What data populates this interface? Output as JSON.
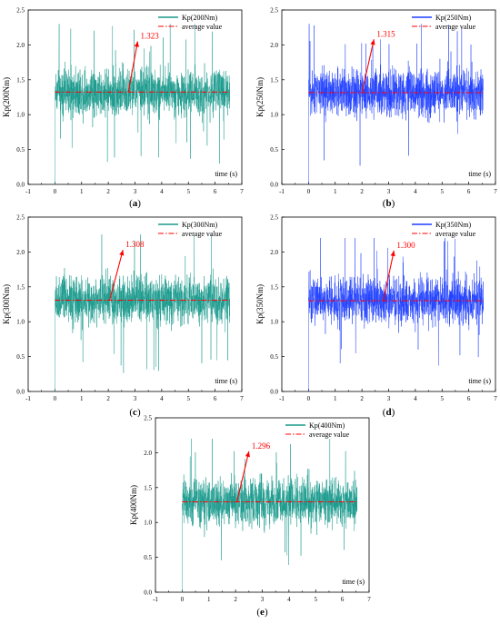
{
  "figure": {
    "panels": [
      {
        "caption_letter": "a",
        "legend_series": "Kp(200Nm)",
        "legend_average": "average value",
        "ylabel": "Kp(200Nm)",
        "xlabel": "time (s)",
        "annotation": "1.323"
      },
      {
        "caption_letter": "b",
        "legend_series": "Kp(250Nm)",
        "legend_average": "average value",
        "ylabel": "Kp(250Nm)",
        "xlabel": "time (s)",
        "annotation": "1.315"
      },
      {
        "caption_letter": "c",
        "legend_series": "Kp(300Nm)",
        "legend_average": "average value",
        "ylabel": "Kp(300Nm)",
        "xlabel": "time (s)",
        "annotation": "1.308"
      },
      {
        "caption_letter": "d",
        "legend_series": "Kp(350Nm)",
        "legend_average": "average value",
        "ylabel": "Kp(350Nm)",
        "xlabel": "time (s)",
        "annotation": "1.300"
      },
      {
        "caption_letter": "e",
        "legend_series": "Kp(400Nm)",
        "legend_average": "average value",
        "ylabel": "Kp(400Nm)",
        "xlabel": "time (s)",
        "annotation": "1.296"
      }
    ]
  },
  "chart_data": [
    {
      "type": "line",
      "title": "",
      "xlabel": "time (s)",
      "ylabel": "Kp(200Nm)",
      "xlim": [
        -1,
        7
      ],
      "ylim": [
        0.0,
        2.5
      ],
      "xticks": [
        -1,
        0,
        1,
        2,
        3,
        4,
        5,
        6,
        7
      ],
      "yticks": [
        0.0,
        0.5,
        1.0,
        1.5,
        2.0,
        2.5
      ],
      "grid": false,
      "legend_position": "top-right",
      "series": [
        {
          "name": "Kp(200Nm)",
          "style": "solid",
          "color": "#1a9a8c",
          "x_range": [
            0.0,
            6.55
          ],
          "mean": 1.323,
          "min": 0.0,
          "max": 2.3,
          "samples": 1400
        },
        {
          "name": "average value",
          "style": "dash-dot",
          "color": "#ff0000",
          "x": [
            0.0,
            6.55
          ],
          "y": [
            1.323,
            1.323
          ]
        }
      ],
      "annotations": [
        {
          "text": "1.323",
          "color": "#ff0000",
          "arrow_from": [
            2.75,
            1.323
          ],
          "arrow_to": [
            3.1,
            2.05
          ]
        }
      ]
    },
    {
      "type": "line",
      "title": "",
      "xlabel": "time (s)",
      "ylabel": "Kp(250Nm)",
      "xlim": [
        -1,
        7
      ],
      "ylim": [
        0.0,
        2.5
      ],
      "xticks": [
        -1,
        0,
        1,
        2,
        3,
        4,
        5,
        6,
        7
      ],
      "yticks": [
        0.0,
        0.5,
        1.0,
        1.5,
        2.0,
        2.5
      ],
      "grid": false,
      "legend_position": "top-right",
      "series": [
        {
          "name": "Kp(250Nm)",
          "style": "solid",
          "color": "#1f3fff",
          "x_range": [
            0.0,
            6.55
          ],
          "mean": 1.315,
          "min": 0.0,
          "max": 2.3,
          "samples": 1400
        },
        {
          "name": "average value",
          "style": "dash-dot",
          "color": "#ff0000",
          "x": [
            0.0,
            6.55
          ],
          "y": [
            1.315,
            1.315
          ]
        }
      ],
      "annotations": [
        {
          "text": "1.315",
          "color": "#ff0000",
          "arrow_from": [
            2.0,
            1.315
          ],
          "arrow_to": [
            2.45,
            2.08
          ]
        }
      ]
    },
    {
      "type": "line",
      "title": "",
      "xlabel": "time (s)",
      "ylabel": "Kp(300Nm)",
      "xlim": [
        -1,
        7
      ],
      "ylim": [
        0.0,
        2.5
      ],
      "xticks": [
        -1,
        0,
        1,
        2,
        3,
        4,
        5,
        6,
        7
      ],
      "yticks": [
        0.0,
        0.5,
        1.0,
        1.5,
        2.0,
        2.5
      ],
      "grid": false,
      "legend_position": "top-right",
      "series": [
        {
          "name": "Kp(300Nm)",
          "style": "solid",
          "color": "#1a9a8c",
          "x_range": [
            0.0,
            6.55
          ],
          "mean": 1.308,
          "min": 0.0,
          "max": 2.25,
          "samples": 1400
        },
        {
          "name": "average value",
          "style": "dash-dot",
          "color": "#ff0000",
          "x": [
            0.0,
            6.55
          ],
          "y": [
            1.308,
            1.308
          ]
        }
      ],
      "annotations": [
        {
          "text": "1.308",
          "color": "#ff0000",
          "arrow_from": [
            2.05,
            1.308
          ],
          "arrow_to": [
            2.55,
            2.03
          ]
        }
      ]
    },
    {
      "type": "line",
      "title": "",
      "xlabel": "time (s)",
      "ylabel": "Kp(350Nm)",
      "xlim": [
        -1,
        7
      ],
      "ylim": [
        0.0,
        2.5
      ],
      "xticks": [
        -1,
        0,
        1,
        2,
        3,
        4,
        5,
        6,
        7
      ],
      "yticks": [
        0.0,
        0.5,
        1.0,
        1.5,
        2.0,
        2.5
      ],
      "grid": false,
      "legend_position": "top-right",
      "series": [
        {
          "name": "Kp(350Nm)",
          "style": "solid",
          "color": "#1f3fff",
          "x_range": [
            0.0,
            6.55
          ],
          "mean": 1.3,
          "min": 0.0,
          "max": 2.2,
          "samples": 1400
        },
        {
          "name": "average value",
          "style": "dash-dot",
          "color": "#ff0000",
          "x": [
            0.0,
            6.55
          ],
          "y": [
            1.3,
            1.3
          ]
        }
      ],
      "annotations": [
        {
          "text": "1.300",
          "color": "#ff0000",
          "arrow_from": [
            2.8,
            1.3
          ],
          "arrow_to": [
            3.2,
            2.02
          ]
        }
      ]
    },
    {
      "type": "line",
      "title": "",
      "xlabel": "time (s)",
      "ylabel": "Kp(400Nm)",
      "xlim": [
        -1,
        7
      ],
      "ylim": [
        0.0,
        2.5
      ],
      "xticks": [
        -1,
        0,
        1,
        2,
        3,
        4,
        5,
        6,
        7
      ],
      "yticks": [
        0.0,
        0.5,
        1.0,
        1.5,
        2.0,
        2.5
      ],
      "grid": false,
      "legend_position": "top-right",
      "series": [
        {
          "name": "Kp(400Nm)",
          "style": "solid",
          "color": "#1a9a8c",
          "x_range": [
            0.0,
            6.55
          ],
          "mean": 1.296,
          "min": 0.0,
          "max": 2.2,
          "samples": 1400
        },
        {
          "name": "average value",
          "style": "dash-dot",
          "color": "#ff0000",
          "x": [
            0.0,
            6.55
          ],
          "y": [
            1.296,
            1.296
          ]
        }
      ],
      "annotations": [
        {
          "text": "1.296",
          "color": "#ff0000",
          "arrow_from": [
            2.05,
            1.296
          ],
          "arrow_to": [
            2.5,
            2.02
          ]
        }
      ]
    }
  ]
}
